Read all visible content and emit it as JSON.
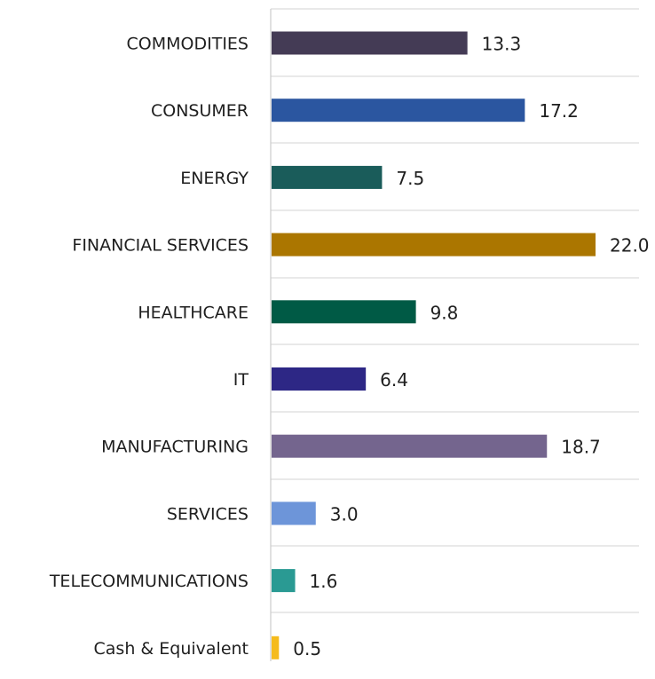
{
  "chart_data": {
    "type": "bar",
    "orientation": "horizontal",
    "categories": [
      "COMMODITIES",
      "CONSUMER",
      "ENERGY",
      "FINANCIAL SERVICES",
      "HEALTHCARE",
      "IT",
      "MANUFACTURING",
      "SERVICES",
      "TELECOMMUNICATIONS",
      "Cash & Equivalent"
    ],
    "values": [
      13.3,
      17.2,
      7.5,
      22.0,
      9.8,
      6.4,
      18.7,
      3.0,
      1.6,
      0.5
    ],
    "value_labels": [
      "13.3",
      "17.2",
      "7.5",
      "22.0",
      "9.8",
      "6.4",
      "18.7",
      "3.0",
      "1.6",
      "0.5"
    ],
    "colors": [
      "#443b55",
      "#2b56a0",
      "#1a5c5a",
      "#ab7600",
      "#005a45",
      "#2d2785",
      "#74658e",
      "#6d95d9",
      "#2a9a93",
      "#f5bb1c"
    ],
    "title": "",
    "xlabel": "",
    "ylabel": "",
    "xlim": [
      0,
      22.6
    ],
    "grid": true
  }
}
